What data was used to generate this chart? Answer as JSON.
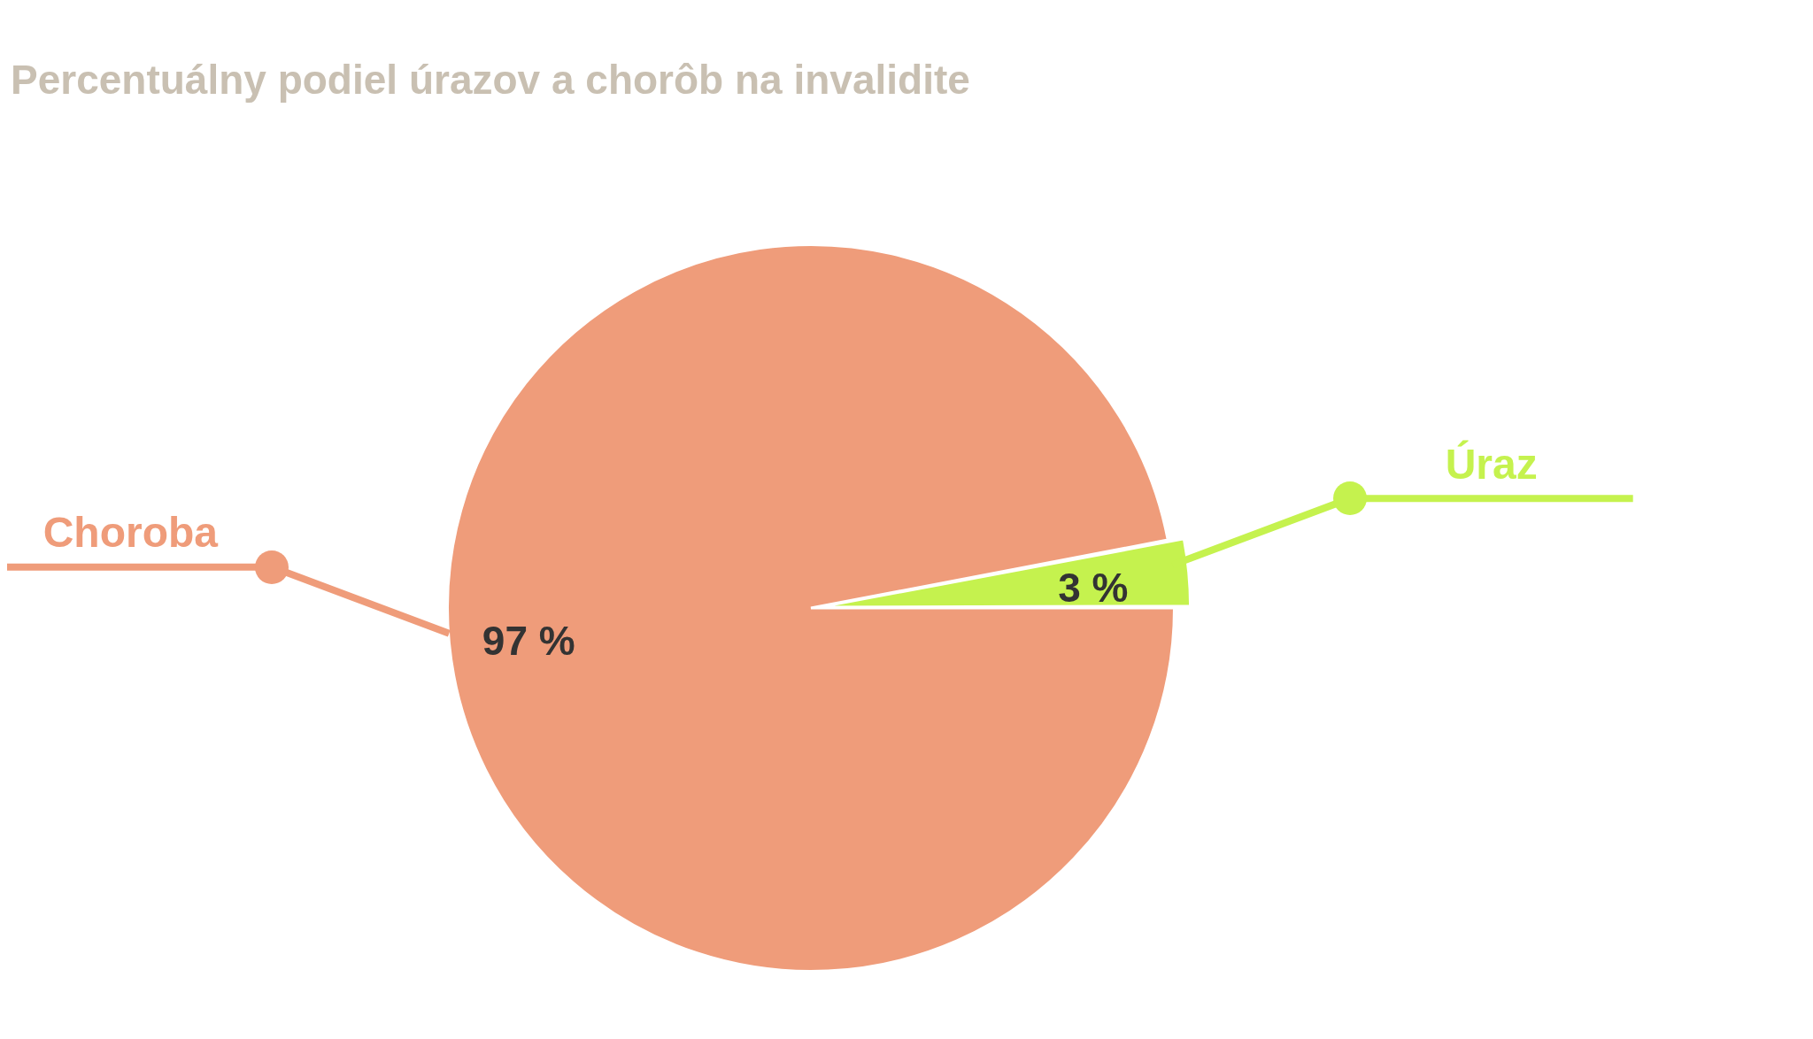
{
  "chart_data": {
    "type": "pie",
    "title": "Percentuálny podiel úrazov a chorôb na invalidite",
    "categories": [
      "Choroba",
      "Úraz"
    ],
    "values": [
      97,
      3
    ],
    "colors": [
      "#ef9c7a",
      "#c5f24e"
    ],
    "value_labels": [
      "97 %",
      "3 %"
    ],
    "legend": false
  }
}
